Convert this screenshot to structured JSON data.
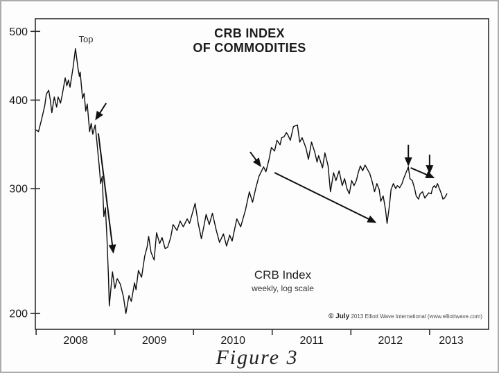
{
  "chart_data": {
    "type": "line",
    "title": "CRB INDEX OF COMMODITIES",
    "labels": {
      "title_line1": "CRB INDEX",
      "title_line2": "OF COMMODITIES",
      "peak_annotation": "Top",
      "series_label": "CRB Index",
      "series_sublabel": "weekly, log scale",
      "copyright_prefix": "© July",
      "copyright_text": "2013 Elliott Wave International (www.elliottwave.com)",
      "figure_caption": "Figure 3"
    },
    "x_axis": {
      "unit": "year",
      "range": [
        2007.99,
        2013.75
      ],
      "tick_years": [
        2008,
        2009,
        2010,
        2011,
        2012,
        2013
      ],
      "tick_labels": [
        "2008",
        "2009",
        "2010",
        "2011",
        "2012",
        "2013"
      ]
    },
    "y_axis": {
      "scale": "log",
      "range": [
        190,
        521
      ],
      "ticks": [
        500,
        400,
        300,
        200
      ],
      "tick_labels": [
        "500",
        "400",
        "300",
        "200"
      ]
    },
    "series": [
      {
        "name": "CRB Index weekly close",
        "points": [
          [
            2008.0,
            363
          ],
          [
            2008.03,
            361
          ],
          [
            2008.07,
            376
          ],
          [
            2008.11,
            393
          ],
          [
            2008.13,
            408
          ],
          [
            2008.16,
            413
          ],
          [
            2008.18,
            400
          ],
          [
            2008.2,
            384
          ],
          [
            2008.23,
            404
          ],
          [
            2008.26,
            391
          ],
          [
            2008.28,
            404
          ],
          [
            2008.31,
            396
          ],
          [
            2008.33,
            406
          ],
          [
            2008.37,
            430
          ],
          [
            2008.39,
            419
          ],
          [
            2008.41,
            427
          ],
          [
            2008.43,
            417
          ],
          [
            2008.47,
            445
          ],
          [
            2008.5,
            473
          ],
          [
            2008.53,
            445
          ],
          [
            2008.55,
            432
          ],
          [
            2008.56,
            438
          ],
          [
            2008.59,
            402
          ],
          [
            2008.61,
            409
          ],
          [
            2008.63,
            386
          ],
          [
            2008.65,
            395
          ],
          [
            2008.68,
            361
          ],
          [
            2008.7,
            371
          ],
          [
            2008.72,
            358
          ],
          [
            2008.75,
            369
          ],
          [
            2008.77,
            351
          ],
          [
            2008.8,
            324
          ],
          [
            2008.82,
            305
          ],
          [
            2008.84,
            312
          ],
          [
            2008.86,
            274
          ],
          [
            2008.88,
            282
          ],
          [
            2008.9,
            256
          ],
          [
            2008.92,
            224
          ],
          [
            2008.93,
            205
          ],
          [
            2008.97,
            229
          ],
          [
            2009.0,
            217
          ],
          [
            2009.03,
            224
          ],
          [
            2009.07,
            220
          ],
          [
            2009.11,
            211
          ],
          [
            2009.14,
            200
          ],
          [
            2009.18,
            212
          ],
          [
            2009.21,
            208
          ],
          [
            2009.25,
            221
          ],
          [
            2009.27,
            216
          ],
          [
            2009.3,
            230
          ],
          [
            2009.34,
            225
          ],
          [
            2009.38,
            241
          ],
          [
            2009.41,
            248
          ],
          [
            2009.43,
            257
          ],
          [
            2009.46,
            244
          ],
          [
            2009.5,
            238
          ],
          [
            2009.53,
            260
          ],
          [
            2009.57,
            251
          ],
          [
            2009.6,
            256
          ],
          [
            2009.64,
            247
          ],
          [
            2009.67,
            248
          ],
          [
            2009.71,
            256
          ],
          [
            2009.74,
            267
          ],
          [
            2009.79,
            262
          ],
          [
            2009.83,
            270
          ],
          [
            2009.87,
            265
          ],
          [
            2009.92,
            272
          ],
          [
            2009.95,
            268
          ],
          [
            2010.02,
            286
          ],
          [
            2010.06,
            268
          ],
          [
            2010.1,
            255
          ],
          [
            2010.13,
            265
          ],
          [
            2010.16,
            276
          ],
          [
            2010.2,
            267
          ],
          [
            2010.24,
            277
          ],
          [
            2010.29,
            262
          ],
          [
            2010.33,
            252
          ],
          [
            2010.38,
            259
          ],
          [
            2010.42,
            249
          ],
          [
            2010.46,
            258
          ],
          [
            2010.49,
            253
          ],
          [
            2010.55,
            272
          ],
          [
            2010.6,
            265
          ],
          [
            2010.66,
            280
          ],
          [
            2010.71,
            297
          ],
          [
            2010.75,
            287
          ],
          [
            2010.79,
            300
          ],
          [
            2010.83,
            312
          ],
          [
            2010.86,
            317
          ],
          [
            2010.89,
            322
          ],
          [
            2010.92,
            317
          ],
          [
            2010.96,
            330
          ],
          [
            2010.99,
            343
          ],
          [
            2011.03,
            339
          ],
          [
            2011.06,
            351
          ],
          [
            2011.1,
            346
          ],
          [
            2011.12,
            354
          ],
          [
            2011.15,
            355
          ],
          [
            2011.18,
            360
          ],
          [
            2011.2,
            357
          ],
          [
            2011.23,
            351
          ],
          [
            2011.27,
            367
          ],
          [
            2011.32,
            369
          ],
          [
            2011.35,
            349
          ],
          [
            2011.38,
            354
          ],
          [
            2011.41,
            347
          ],
          [
            2011.43,
            342
          ],
          [
            2011.46,
            330
          ],
          [
            2011.5,
            349
          ],
          [
            2011.54,
            338
          ],
          [
            2011.57,
            327
          ],
          [
            2011.59,
            334
          ],
          [
            2011.64,
            321
          ],
          [
            2011.67,
            337
          ],
          [
            2011.71,
            323
          ],
          [
            2011.74,
            297
          ],
          [
            2011.78,
            316
          ],
          [
            2011.81,
            308
          ],
          [
            2011.85,
            318
          ],
          [
            2011.89,
            303
          ],
          [
            2011.92,
            310
          ],
          [
            2011.95,
            300
          ],
          [
            2011.98,
            295
          ],
          [
            2012.01,
            308
          ],
          [
            2012.04,
            303
          ],
          [
            2012.07,
            308
          ],
          [
            2012.09,
            315
          ],
          [
            2012.12,
            323
          ],
          [
            2012.15,
            318
          ],
          [
            2012.18,
            324
          ],
          [
            2012.22,
            318
          ],
          [
            2012.24,
            315
          ],
          [
            2012.27,
            307
          ],
          [
            2012.3,
            297
          ],
          [
            2012.33,
            305
          ],
          [
            2012.36,
            299
          ],
          [
            2012.38,
            288
          ],
          [
            2012.41,
            293
          ],
          [
            2012.44,
            280
          ],
          [
            2012.46,
            268
          ],
          [
            2012.49,
            284
          ],
          [
            2012.51,
            299
          ],
          [
            2012.54,
            305
          ],
          [
            2012.57,
            300
          ],
          [
            2012.59,
            303
          ],
          [
            2012.62,
            301
          ],
          [
            2012.65,
            305
          ],
          [
            2012.67,
            310
          ],
          [
            2012.7,
            316
          ],
          [
            2012.73,
            322
          ],
          [
            2012.75,
            310
          ],
          [
            2012.78,
            308
          ],
          [
            2012.81,
            300
          ],
          [
            2012.83,
            293
          ],
          [
            2012.86,
            290
          ],
          [
            2012.88,
            295
          ],
          [
            2012.91,
            297
          ],
          [
            2012.94,
            291
          ],
          [
            2012.96,
            293
          ],
          [
            2012.99,
            296
          ],
          [
            2013.02,
            295
          ],
          [
            2013.04,
            301
          ],
          [
            2013.06,
            303
          ],
          [
            2013.08,
            301
          ],
          [
            2013.1,
            305
          ],
          [
            2013.12,
            301
          ],
          [
            2013.15,
            295
          ],
          [
            2013.17,
            290
          ],
          [
            2013.19,
            291
          ],
          [
            2013.22,
            295
          ]
        ]
      }
    ],
    "arrows": [
      {
        "name": "decline-start-arrow",
        "from": [
          2008.89,
          396
        ],
        "to": [
          2008.76,
          376
        ]
      },
      {
        "name": "crash-trend-arrow",
        "from": [
          2008.79,
          359
        ],
        "to": [
          2008.98,
          244
        ]
      },
      {
        "name": "2010-peak-arrow",
        "from": [
          2010.72,
          338
        ],
        "to": [
          2010.85,
          323
        ]
      },
      {
        "name": "2011-decline-arrow",
        "from": [
          2011.03,
          316
        ],
        "to": [
          2012.31,
          269
        ]
      },
      {
        "name": "2012-peak-arrow",
        "from": [
          2012.73,
          346
        ],
        "to": [
          2012.73,
          324
        ]
      },
      {
        "name": "2013-peak-arrow",
        "from": [
          2013.0,
          335
        ],
        "to": [
          2013.0,
          316
        ]
      },
      {
        "name": "2012-decline-arrow",
        "from": [
          2012.76,
          321
        ],
        "to": [
          2013.05,
          311
        ]
      }
    ]
  }
}
